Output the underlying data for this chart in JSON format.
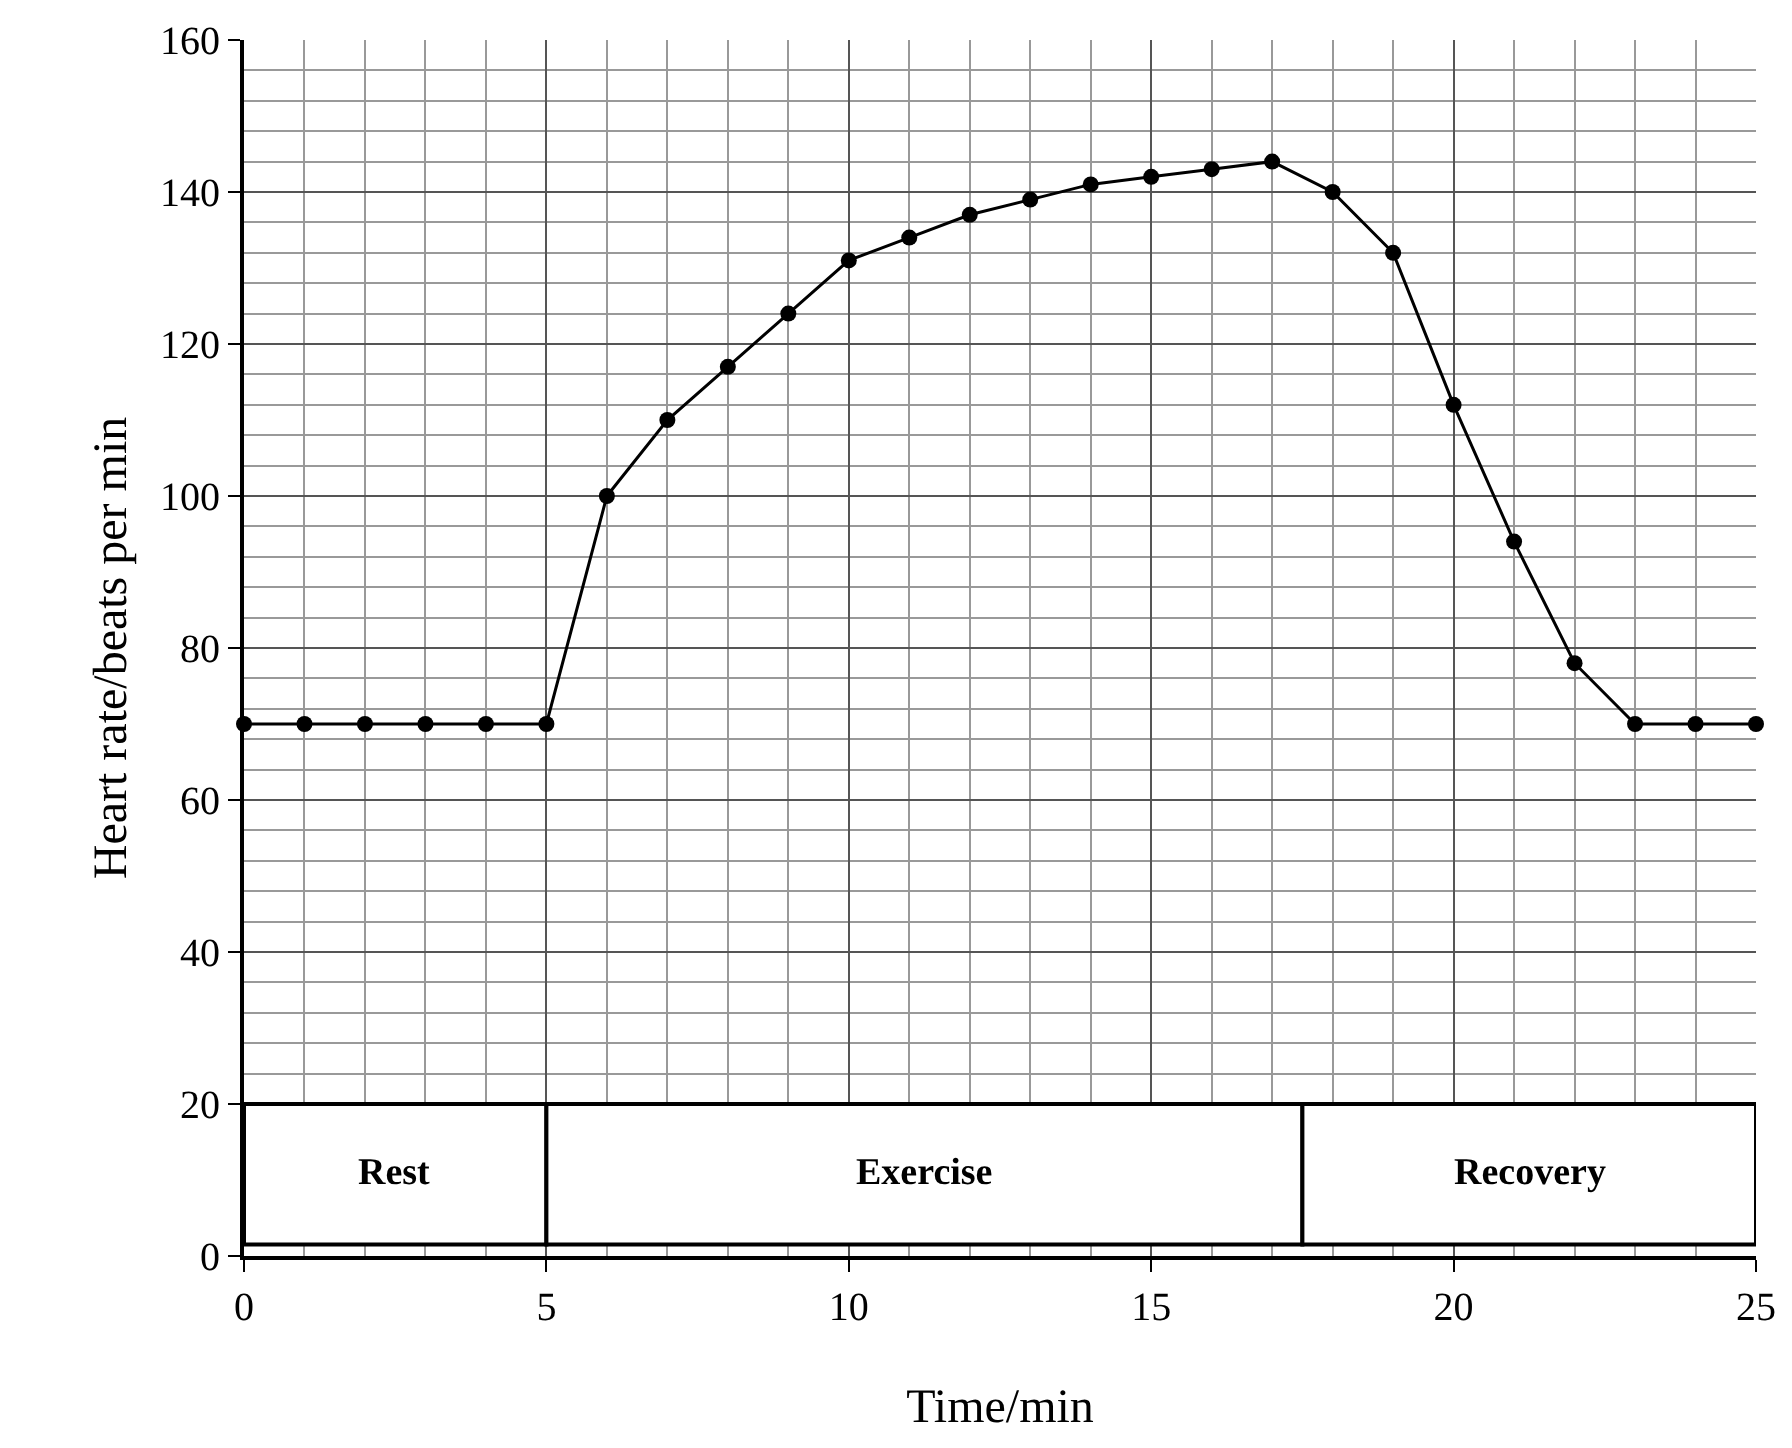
{
  "chart_data": {
    "type": "line",
    "xlabel": "Time/min",
    "ylabel": "Heart rate/beats per min",
    "x": [
      0,
      1,
      2,
      3,
      4,
      5,
      6,
      7,
      8,
      9,
      10,
      11,
      12,
      13,
      14,
      15,
      16,
      17,
      18,
      19,
      20,
      21,
      22,
      23,
      24,
      25
    ],
    "values": [
      70,
      70,
      70,
      70,
      70,
      70,
      100,
      110,
      117,
      124,
      131,
      134,
      137,
      139,
      141,
      142,
      143,
      144,
      140,
      132,
      112,
      94,
      78,
      70,
      70,
      70
    ],
    "color": "#000000",
    "marker": "circle",
    "line_style": "solid",
    "xlim": [
      0,
      25
    ],
    "xticks": [
      0,
      5,
      10,
      15,
      20,
      25
    ],
    "ylim": [
      0,
      160
    ],
    "yticks": [
      0,
      20,
      40,
      60,
      80,
      100,
      120,
      140,
      160
    ],
    "grid": true,
    "bands": [
      {
        "axis": "x",
        "from": 0,
        "to": 5,
        "label": "Rest"
      },
      {
        "axis": "x",
        "from": 5,
        "to": 17.5,
        "label": "Exercise"
      },
      {
        "axis": "x",
        "from": 17.5,
        "to": 25,
        "label": "Recovery"
      }
    ]
  }
}
